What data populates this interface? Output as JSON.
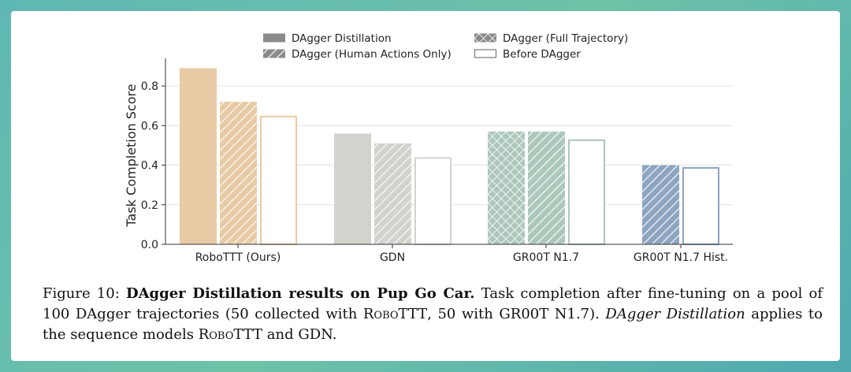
{
  "chart_data": {
    "type": "bar",
    "ylabel": "Task Completion Score",
    "ylim": [
      0,
      0.9
    ],
    "yticks": [
      "0.0",
      "0.2",
      "0.4",
      "0.6",
      "0.8"
    ],
    "ytick_values": [
      0,
      0.2,
      0.4,
      0.6,
      0.8
    ],
    "grid": "horizontal",
    "legend_placement": "top-center",
    "legend": [
      {
        "label": "DAgger Distillation",
        "pattern": "solid"
      },
      {
        "label": "DAgger (Full Trajectory)",
        "pattern": "crosshatch"
      },
      {
        "label": "DAgger (Human Actions Only)",
        "pattern": "diagonal"
      },
      {
        "label": "Before DAgger",
        "pattern": "outline"
      }
    ],
    "groups": [
      {
        "label": "RoboTTT (Ours)",
        "color": "#e7cba5",
        "bars": [
          {
            "series": "DAgger Distillation",
            "value": 0.89
          },
          {
            "series": "DAgger (Human Actions Only)",
            "value": 0.72
          },
          {
            "series": "Before DAgger",
            "value": 0.65
          }
        ]
      },
      {
        "label": "GDN",
        "color": "#d1d3cd",
        "bars": [
          {
            "series": "DAgger Distillation",
            "value": 0.56
          },
          {
            "series": "DAgger (Human Actions Only)",
            "value": 0.51
          },
          {
            "series": "Before DAgger",
            "value": 0.44
          }
        ]
      },
      {
        "label": "GR00T N1.7",
        "color": "#adc8bb",
        "bars": [
          {
            "series": "DAgger (Full Trajectory)",
            "value": 0.57
          },
          {
            "series": "DAgger (Human Actions Only)",
            "value": 0.57
          },
          {
            "series": "Before DAgger",
            "value": 0.53
          }
        ]
      },
      {
        "label": "GR00T N1.7 Hist.",
        "color": "#8da5bf",
        "bars": [
          {
            "series": "DAgger (Human Actions Only)",
            "value": 0.4
          },
          {
            "series": "Before DAgger",
            "value": 0.39
          }
        ]
      }
    ]
  },
  "caption": {
    "prefix": "Figure 10: ",
    "bold": "DAgger Distillation results on Pup Go Car.",
    "text1": " Task completion after fine-tuning on a pool of 100 DAgger trajectories (50 collected with ",
    "sc1": "RoboTTT",
    "text2": ", 50 with GR00T N1.7). ",
    "italic": "DAgger Distillation",
    "text3": " applies to the sequence models ",
    "sc2": "RoboTTT",
    "text4": " and GDN."
  }
}
